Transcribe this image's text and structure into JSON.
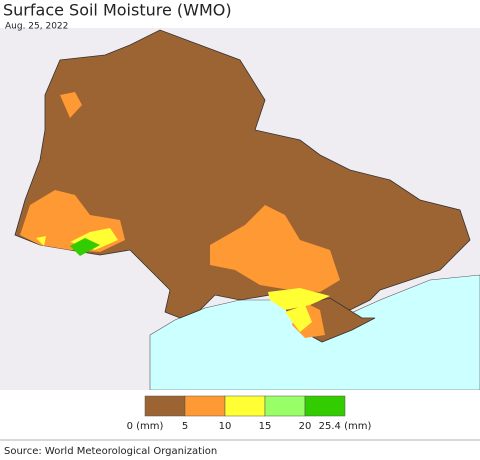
{
  "title": "Surface Soil Moisture (WMO)",
  "date": "Aug. 25, 2022",
  "legend": {
    "colors": [
      "#9c6432",
      "#ff9933",
      "#ffff33",
      "#99ff66",
      "#33cc00"
    ],
    "labels": [
      "0 (mm)",
      "5",
      "10",
      "15",
      "20",
      "25.4 (mm)"
    ]
  },
  "source": "Source: World Meteorological Organization"
}
